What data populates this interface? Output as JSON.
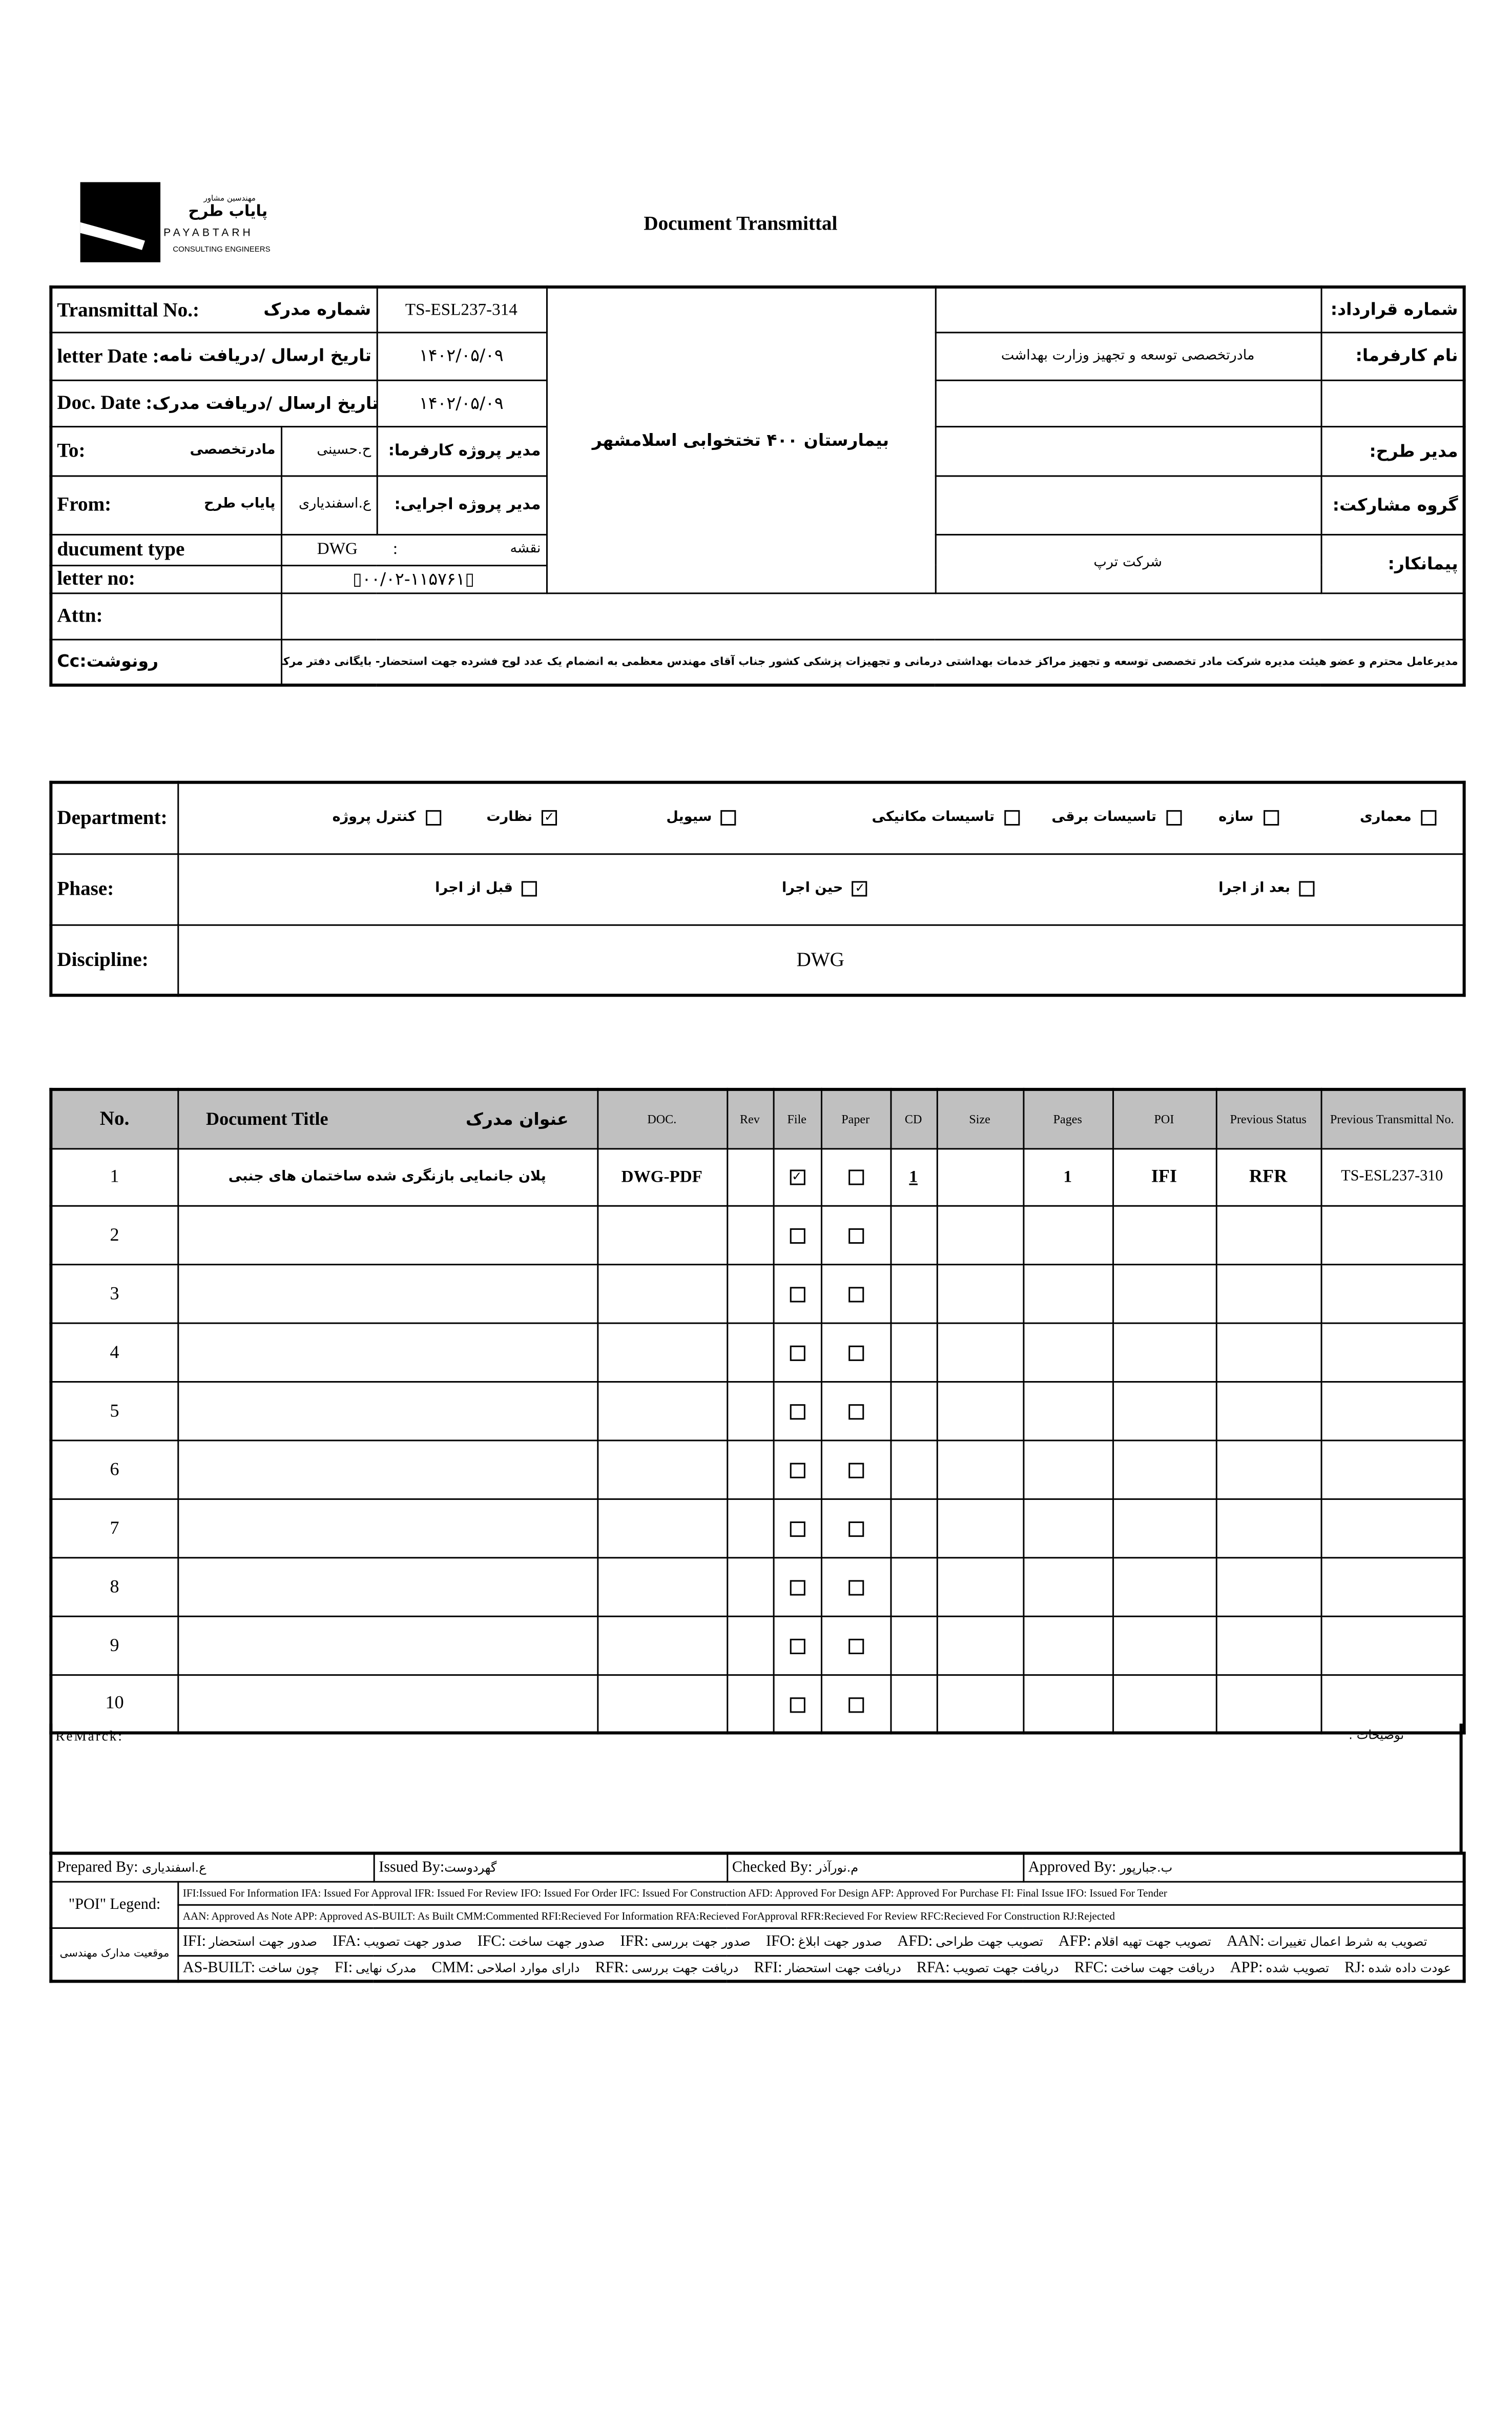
{
  "logo": {
    "fa_small": "مهندسین مشاور",
    "fa_name": "پایاب طرح",
    "en_name": "PAYABTARH",
    "en_sub": "CONSULTING ENGINEERS"
  },
  "title": "Document Transmittal",
  "header": {
    "transmittal_no": {
      "label": "Transmittal No.:",
      "fa": "شماره مدرک",
      "value": "TS-ESL237-314"
    },
    "letter_date": {
      "label": "letter Date  :",
      "fa": "تاریخ ارسال /دریافت نامه",
      "value": "۱۴۰۲/۰۵/۰۹"
    },
    "doc_date": {
      "label": "Doc. Date   :",
      "fa": "تاریخ ارسال /دریافت مدرک",
      "value": "۱۴۰۲/۰۵/۰۹"
    },
    "to": {
      "label": "To:",
      "org": "مادرتخصصی",
      "person": "ح.حسینی",
      "role": "مدیر پروژه کارفرما:"
    },
    "from": {
      "label": "From:",
      "org": "پایاب طرح",
      "person": "ع.اسفندیاری",
      "role": "مدیر پروژه اجرایی:"
    },
    "doc_type": {
      "label": "ducument type",
      "value": "DWG",
      "sep": ":",
      "fa": "نقشه"
    },
    "letter_no": {
      "label": "letter no:",
      "value": "▯۰۰/۰۲-۱۱۵۷۶۱▯"
    },
    "project": "بیمارستان ۴۰۰ تختخوابی اسلامشهر",
    "contract_no": {
      "label": "شماره قرارداد:",
      "value": ""
    },
    "employer": {
      "label": "نام کارفرما:",
      "value": "مادرتخصصی توسعه و تجهیز وزارت بهداشت"
    },
    "project_manager": {
      "label": "مدیر طرح:",
      "value": ""
    },
    "partnership": {
      "label": "گروه مشارکت:",
      "value": ""
    },
    "contractor": {
      "label": "پیمانکار:",
      "value": "شرکت ترپ"
    },
    "attn": {
      "label": "Attn:",
      "value": ""
    },
    "cc": {
      "label": "Cc:رونوشت",
      "value": "مدیرعامل محترم و عضو هیئت مدیره شرکت مادر تخصصی توسعه و تجهیز مراکز خدمات بهداشتی درمانی و تجهیزات پزشکی کشور جناب آقای مهندس معظمی به انضمام یک عدد لوح فشرده جهت استحضار- بایگانی دفتر مرکزی"
    }
  },
  "department": {
    "label": "Department:",
    "options": [
      {
        "label": "معماری",
        "checked": false
      },
      {
        "label": "سازه",
        "checked": false
      },
      {
        "label": "تاسیسات برقی",
        "checked": false
      },
      {
        "label": "تاسیسات مکانیکی",
        "checked": false
      },
      {
        "label": "سیویل",
        "checked": false
      },
      {
        "label": "نظارت",
        "checked": true
      },
      {
        "label": "کنترل پروژه",
        "checked": false
      }
    ]
  },
  "phase": {
    "label": "Phase:",
    "options": [
      {
        "label": "بعد از اجرا",
        "checked": false
      },
      {
        "label": "حین اجرا",
        "checked": true
      },
      {
        "label": "قبل از اجرا",
        "checked": false
      }
    ]
  },
  "discipline": {
    "label": "Discipline:",
    "value": "DWG"
  },
  "items": {
    "headers": {
      "no": "No.",
      "title_en": "Document Title",
      "title_fa": "عنوان مدرک",
      "doc": "DOC.",
      "rev": "Rev",
      "file": "File",
      "paper": "Paper",
      "cd": "CD",
      "size": "Size",
      "pages": "Pages",
      "poi": "POI",
      "prev_status": "Previous Status",
      "prev_no": "Previous Transmittal No."
    },
    "rows": [
      {
        "no": "1",
        "title": "پلان جانمایی بازنگری شده ساختمان های جنبی",
        "doc": "DWG-PDF",
        "rev": "",
        "file": true,
        "paper": false,
        "cd": "1",
        "size": "",
        "pages": "1",
        "poi": "IFI",
        "prev_status": "RFR",
        "prev_no": "TS-ESL237-310"
      },
      {
        "no": "2",
        "title": "",
        "doc": "",
        "rev": "",
        "file": false,
        "paper": false,
        "cd": "",
        "size": "",
        "pages": "",
        "poi": "",
        "prev_status": "",
        "prev_no": ""
      },
      {
        "no": "3",
        "title": "",
        "doc": "",
        "rev": "",
        "file": false,
        "paper": false,
        "cd": "",
        "size": "",
        "pages": "",
        "poi": "",
        "prev_status": "",
        "prev_no": ""
      },
      {
        "no": "4",
        "title": "",
        "doc": "",
        "rev": "",
        "file": false,
        "paper": false,
        "cd": "",
        "size": "",
        "pages": "",
        "poi": "",
        "prev_status": "",
        "prev_no": ""
      },
      {
        "no": "5",
        "title": "",
        "doc": "",
        "rev": "",
        "file": false,
        "paper": false,
        "cd": "",
        "size": "",
        "pages": "",
        "poi": "",
        "prev_status": "",
        "prev_no": ""
      },
      {
        "no": "6",
        "title": "",
        "doc": "",
        "rev": "",
        "file": false,
        "paper": false,
        "cd": "",
        "size": "",
        "pages": "",
        "poi": "",
        "prev_status": "",
        "prev_no": ""
      },
      {
        "no": "7",
        "title": "",
        "doc": "",
        "rev": "",
        "file": false,
        "paper": false,
        "cd": "",
        "size": "",
        "pages": "",
        "poi": "",
        "prev_status": "",
        "prev_no": ""
      },
      {
        "no": "8",
        "title": "",
        "doc": "",
        "rev": "",
        "file": false,
        "paper": false,
        "cd": "",
        "size": "",
        "pages": "",
        "poi": "",
        "prev_status": "",
        "prev_no": ""
      },
      {
        "no": "9",
        "title": "",
        "doc": "",
        "rev": "",
        "file": false,
        "paper": false,
        "cd": "",
        "size": "",
        "pages": "",
        "poi": "",
        "prev_status": "",
        "prev_no": ""
      },
      {
        "no": "10",
        "title": "",
        "doc": "",
        "rev": "",
        "file": false,
        "paper": false,
        "cd": "",
        "size": "",
        "pages": "",
        "poi": "",
        "prev_status": "",
        "prev_no": ""
      }
    ]
  },
  "remark": {
    "label_en": "ReMarck:",
    "label_fa": "توضیحات :"
  },
  "signatures": [
    {
      "label": "Prepared By:",
      "name": "ع.اسفندیاری"
    },
    {
      "label": "Issued By:",
      "name": "گهردوست"
    },
    {
      "label": "Checked By:",
      "name": "م.نورآذر"
    },
    {
      "label": "Approved By:",
      "name": "ب.جبارپور"
    }
  ],
  "poi_legend": {
    "label": "\"POI\" Legend:",
    "line1": "IFI:Issued For Information  IFA: Issued For Approval  IFR: Issued For Review   IFO: Issued For Order  IFC: Issued For Construction AFD: Approved For Design AFP: Approved For Purchase  FI: Final Issue  IFO: Issued For Tender",
    "line2": "AAN: Approved As Note  APP: Approved  AS-BUILT: As Built CMM:Commented  RFI:Recieved For Information   RFA:Recieved ForApproval  RFR:Recieved For Review  RFC:Recieved For Construction  RJ:Rejected"
  },
  "status_legend": {
    "label": "موقعیت مدارک مهندسی",
    "row1": [
      {
        "k": "IFI:",
        "v": "صدور جهت استحضار"
      },
      {
        "k": "IFA:",
        "v": "صدور جهت تصویب"
      },
      {
        "k": "IFC:",
        "v": "صدور جهت ساخت"
      },
      {
        "k": "IFR:",
        "v": "صدور جهت بررسی"
      },
      {
        "k": "IFO:",
        "v": "صدور جهت ابلاغ"
      },
      {
        "k": "AFD:",
        "v": "تصویب جهت طراحی"
      },
      {
        "k": "AFP:",
        "v": "تصویب جهت تهیه اقلام"
      },
      {
        "k": "AAN:",
        "v": "تصویب به شرط اعمال تغییرات"
      }
    ],
    "row2": [
      {
        "k": "AS-BUILT:",
        "v": "چون ساخت"
      },
      {
        "k": "FI:",
        "v": "مدرک نهایی"
      },
      {
        "k": "CMM:",
        "v": "دارای موارد اصلاحی"
      },
      {
        "k": "RFR:",
        "v": "دریافت جهت بررسی"
      },
      {
        "k": "RFI:",
        "v": "دریافت جهت استحضار"
      },
      {
        "k": "RFA:",
        "v": "دریافت جهت تصویب"
      },
      {
        "k": "RFC:",
        "v": "دریافت جهت ساخت"
      },
      {
        "k": "APP:",
        "v": "تصویب شده"
      },
      {
        "k": "RJ:",
        "v": "عودت داده شده"
      }
    ]
  }
}
